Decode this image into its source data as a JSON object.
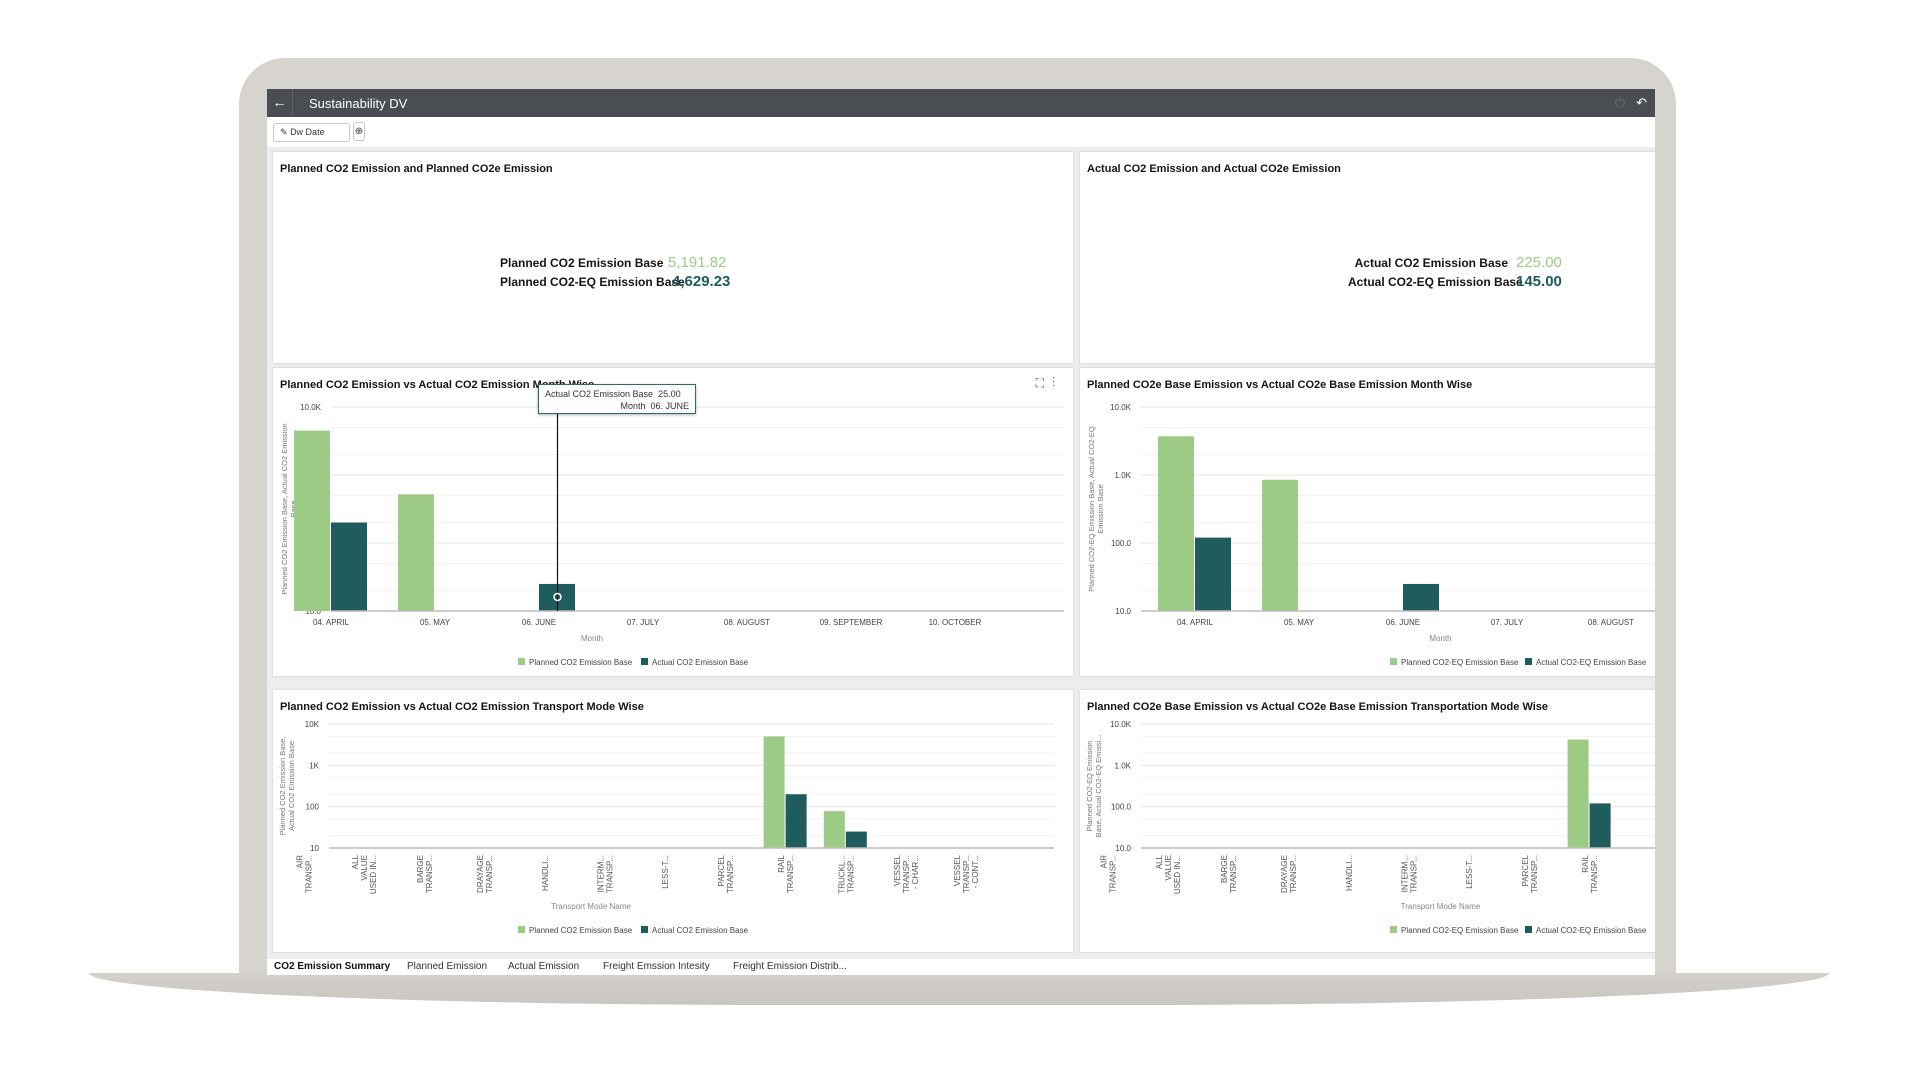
{
  "app": {
    "title": "Sustainability DV",
    "back_icon": "arrow-left-icon",
    "right_icons": [
      "power-icon",
      "undo-icon"
    ]
  },
  "filter": {
    "label": "Dw Date",
    "icon": "pin-icon",
    "add_icon": "plus-circle-icon"
  },
  "kpi_planned": {
    "title": "Planned CO2 Emission and Planned CO2e Emission",
    "co2_label": "Planned CO2 Emission Base",
    "co2_value": "5,191.82",
    "co2e_label": "Planned CO2-EQ Emission Base",
    "co2e_value": "4,629.23"
  },
  "kpi_actual": {
    "title": "Actual CO2 Emission and Actual CO2e Emission",
    "co2_label": "Actual CO2 Emission Base",
    "co2_value": "225.00",
    "co2e_label": "Actual CO2-EQ Emission Base",
    "co2e_value": "145.00"
  },
  "colors": {
    "planned": "#9ccb86",
    "actual": "#1f5c5e",
    "titlebar": "#4a4e53"
  },
  "tooltip": {
    "label1": "Actual CO2 Emission Base",
    "value1": "25.00",
    "label2": "Month",
    "value2": "06. JUNE"
  },
  "panel_icons": [
    "expand-icon",
    "more-vertical-icon"
  ],
  "chart_data": [
    {
      "type": "bar",
      "title": "Planned CO2 Emission vs Actual CO2 Emission Month Wise",
      "xlabel": "Month",
      "ylabel": [
        "Planned CO2 Emission Base, Actual CO2 Emission",
        "Base"
      ],
      "yscale": "log",
      "ylim": [
        10,
        10000
      ],
      "yticks": [
        "10.0",
        "100.0",
        "1.0K",
        "10.0K"
      ],
      "grid": true,
      "legend": "bottom",
      "categories": [
        [
          "04. APRIL"
        ],
        [
          "05. MAY"
        ],
        [
          "06. JUNE"
        ],
        [
          "07. JULY"
        ],
        [
          "08. AUGUST"
        ],
        [
          "09. SEPTEMBER"
        ],
        [
          "10. OCTOBER"
        ]
      ],
      "series": [
        {
          "name": "Planned CO2 Emission Base",
          "values": [
            4500,
            520,
            null,
            null,
            null,
            null,
            null
          ]
        },
        {
          "name": "Actual CO2 Emission Base",
          "values": [
            200,
            null,
            25,
            null,
            null,
            null,
            null
          ]
        }
      ]
    },
    {
      "type": "bar",
      "title": "Planned CO2e Base Emission vs Actual CO2e Base Emission Month Wise",
      "xlabel": "Month",
      "ylabel": [
        "Planned CO2-EQ Emission Base, Actual CO2-EQ",
        "Emission Base"
      ],
      "yscale": "log",
      "ylim": [
        10,
        10000
      ],
      "yticks": [
        "10.0",
        "100.0",
        "1.0K",
        "10.0K"
      ],
      "grid": true,
      "legend": "bottom",
      "categories": [
        [
          "04. APRIL"
        ],
        [
          "05. MAY"
        ],
        [
          "06. JUNE"
        ],
        [
          "07. JULY"
        ],
        [
          "08. AUGUST"
        ]
      ],
      "series": [
        {
          "name": "Planned CO2-EQ Emission Base",
          "values": [
            3700,
            850,
            null,
            null,
            null
          ]
        },
        {
          "name": "Actual CO2-EQ Emission Base",
          "values": [
            120,
            null,
            25,
            null,
            null
          ]
        }
      ]
    },
    {
      "type": "bar",
      "title": "Planned CO2 Emission vs Actual CO2 Emission Transport Mode Wise",
      "xlabel": "Transport Mode Name",
      "ylabel": [
        "Planned CO2 Emission Base,",
        "Actual CO2 Emission Base"
      ],
      "yscale": "log",
      "ylim": [
        10,
        10000
      ],
      "yticks": [
        "10",
        "100",
        "1K",
        "10K"
      ],
      "grid": true,
      "legend": "bottom",
      "categories": [
        [
          "AIR",
          "TRANSP..."
        ],
        [
          "ALL",
          "VALUE",
          "USED IN..."
        ],
        [
          "BARGE",
          "TRANSP..."
        ],
        [
          "DRAYAGE",
          "TRANSP..."
        ],
        [
          "HANDLI..."
        ],
        [
          "INTERM...",
          "TRANSP..."
        ],
        [
          "LESS-T..."
        ],
        [
          "PARCEL",
          "TRANSP..."
        ],
        [
          "RAIL",
          "TRANSP..."
        ],
        [
          "TRUCKL...",
          "TRANSP..."
        ],
        [
          "VESSEL",
          "TRANSP...",
          "- CHAR..."
        ],
        [
          "VESSEL",
          "TRANSP...",
          "- CONT..."
        ]
      ],
      "series": [
        {
          "name": "Planned CO2 Emission Base",
          "values": [
            null,
            null,
            null,
            null,
            null,
            null,
            null,
            null,
            5000,
            78,
            null,
            null
          ]
        },
        {
          "name": "Actual CO2 Emission Base",
          "values": [
            null,
            null,
            null,
            null,
            null,
            null,
            null,
            null,
            200,
            25,
            null,
            null
          ]
        }
      ]
    },
    {
      "type": "bar",
      "title": "Planned CO2e Base Emission vs Actual CO2e Base Emission Transportation Mode Wise",
      "xlabel": "Transport Mode Name",
      "ylabel": [
        "Planned CO2-EQ Emission",
        "Base, Actual CO2-EQ Emissi..."
      ],
      "yscale": "log",
      "ylim": [
        10,
        10000
      ],
      "yticks": [
        "10.0",
        "100.0",
        "1.0K",
        "10.0K"
      ],
      "grid": true,
      "legend": "bottom",
      "categories": [
        [
          "AIR",
          "TRANSP..."
        ],
        [
          "ALL",
          "VALUE",
          "USED IN..."
        ],
        [
          "BARGE",
          "TRANSP..."
        ],
        [
          "DRAYAGE",
          "TRANSP..."
        ],
        [
          "HANDLI..."
        ],
        [
          "INTERM...",
          "TRANSP..."
        ],
        [
          "LESS-T..."
        ],
        [
          "PARCEL",
          "TRANSP..."
        ],
        [
          "RAIL",
          "TRANSP..."
        ]
      ],
      "series": [
        {
          "name": "Planned CO2-EQ Emission Base",
          "values": [
            null,
            null,
            null,
            null,
            null,
            null,
            null,
            null,
            4200
          ]
        },
        {
          "name": "Actual CO2-EQ Emission Base",
          "values": [
            null,
            null,
            null,
            null,
            null,
            null,
            null,
            null,
            120
          ]
        }
      ]
    }
  ],
  "tabs": [
    {
      "label": "CO2 Emission Summary",
      "active": true
    },
    {
      "label": "Planned Emission"
    },
    {
      "label": "Actual Emission"
    },
    {
      "label": "Freight Emssion Intesity"
    },
    {
      "label": "Freight Emission Distrib..."
    }
  ]
}
